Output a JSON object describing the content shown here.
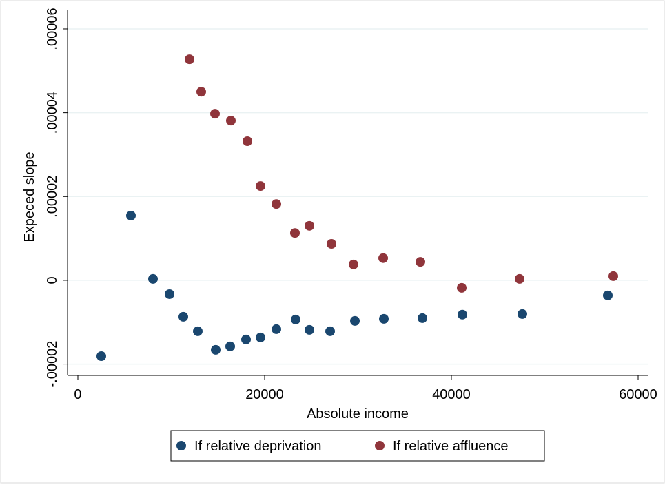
{
  "chart_data": {
    "type": "scatter",
    "xlabel": "Absolute income",
    "ylabel": "Expeced slope",
    "xlim": [
      -1107,
      61033
    ],
    "ylim": [
      -2.27e-05,
      6.46e-05
    ],
    "xticks": [
      0,
      20000,
      40000,
      60000
    ],
    "yticks": [
      {
        "value": -2e-05,
        "label": "-.00002"
      },
      0,
      {
        "value": 2e-05,
        "label": ".00002"
      },
      {
        "value": 4e-05,
        "label": ".00004"
      },
      {
        "value": 6e-05,
        "label": ".00006"
      }
    ],
    "grid": true,
    "legend": "bottom",
    "series": [
      {
        "name": "If relative deprivation",
        "color": "#1a476f",
        "x": [
          2509,
          5683,
          8044,
          9815,
          11292,
          12841,
          14760,
          16310,
          18007,
          19557,
          21255,
          23321,
          24797,
          27011,
          29668,
          32768,
          36900,
          41181,
          47601,
          56753
        ],
        "values": [
          -1.81e-05,
          1.545e-05,
          3.3e-07,
          -3.29e-06,
          -8.71e-06,
          -1.216e-05,
          -1.66e-05,
          -1.577e-05,
          -1.413e-05,
          -1.364e-05,
          -1.167e-05,
          -9.37e-06,
          -1.183e-05,
          -1.216e-05,
          -9.69e-06,
          -9.2e-06,
          -9.04e-06,
          -8.2e-06,
          -8.05e-06,
          -3.6e-06
        ]
      },
      {
        "name": "If relative affluence",
        "color": "#90353b",
        "x": [
          11956,
          13210,
          14686,
          16384,
          18155,
          19557,
          21255,
          23247,
          24797,
          27159,
          29520,
          32694,
          36679,
          41107,
          47306,
          57343
        ],
        "values": [
          5.274e-05,
          4.5e-05,
          3.976e-05,
          3.81e-05,
          3.32e-05,
          2.25e-05,
          1.82e-05,
          1.13e-05,
          1.3e-05,
          8.7e-06,
          3.8e-06,
          5.3e-06,
          4.4e-06,
          -1.8e-06,
          3.3e-07,
          9.9e-07
        ]
      }
    ]
  }
}
